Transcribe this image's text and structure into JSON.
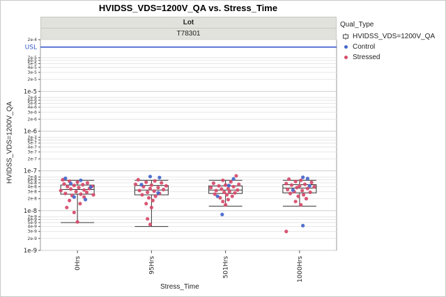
{
  "title": "HVIDSS_VDS=1200V_QA vs. Stress_Time",
  "panel": {
    "group_label": "Lot",
    "group_value": "T78301"
  },
  "chart_data": {
    "type": "box+scatter",
    "y_scale": "log",
    "xlabel": "Stress_Time",
    "ylabel": "HVIDSS_VDS=1200V_QA",
    "ylim": [
      1e-09,
      0.0002
    ],
    "y_ticks": [
      {
        "value": 0.0002,
        "label": "2e-4",
        "major": false
      },
      {
        "value": 7e-05,
        "label": "7e-5",
        "major": false
      },
      {
        "value": 6e-05,
        "label": "6e-5",
        "major": false
      },
      {
        "value": 5e-05,
        "label": "5e-5",
        "major": false
      },
      {
        "value": 4e-05,
        "label": "4e-5",
        "major": false
      },
      {
        "value": 3e-05,
        "label": "3e-5",
        "major": false
      },
      {
        "value": 2e-05,
        "label": "2e-5",
        "major": false
      },
      {
        "value": 1e-05,
        "label": "1e-5",
        "major": true
      },
      {
        "value": 7e-06,
        "label": "7e-6",
        "major": false
      },
      {
        "value": 6e-06,
        "label": "6e-6",
        "major": false
      },
      {
        "value": 5e-06,
        "label": "5e-6",
        "major": false
      },
      {
        "value": 4e-06,
        "label": "4e-6",
        "major": false
      },
      {
        "value": 3e-06,
        "label": "3e-6",
        "major": false
      },
      {
        "value": 2e-06,
        "label": "2e-6",
        "major": false
      },
      {
        "value": 1e-06,
        "label": "1e-6",
        "major": true
      },
      {
        "value": 7e-07,
        "label": "7e-7",
        "major": false
      },
      {
        "value": 6e-07,
        "label": "6e-7",
        "major": false
      },
      {
        "value": 5e-07,
        "label": "5e-7",
        "major": false
      },
      {
        "value": 4e-07,
        "label": "4e-7",
        "major": false
      },
      {
        "value": 3e-07,
        "label": "3e-7",
        "major": false
      },
      {
        "value": 2e-07,
        "label": "2e-7",
        "major": false
      },
      {
        "value": 1e-07,
        "label": "1e-7",
        "major": true
      },
      {
        "value": 7e-08,
        "label": "7e-8",
        "major": false
      },
      {
        "value": 6e-08,
        "label": "6e-8",
        "major": false
      },
      {
        "value": 5e-08,
        "label": "5e-8",
        "major": false
      },
      {
        "value": 4e-08,
        "label": "4e-8",
        "major": false
      },
      {
        "value": 3e-08,
        "label": "3e-8",
        "major": false
      },
      {
        "value": 2e-08,
        "label": "2e-8",
        "major": false
      },
      {
        "value": 1e-08,
        "label": "1e-8",
        "major": true
      },
      {
        "value": 7e-09,
        "label": "7e-9",
        "major": false
      },
      {
        "value": 6e-09,
        "label": "6e-9",
        "major": false
      },
      {
        "value": 5e-09,
        "label": "5e-9",
        "major": false
      },
      {
        "value": 4e-09,
        "label": "4e-9",
        "major": false
      },
      {
        "value": 3e-09,
        "label": "3e-9",
        "major": false
      },
      {
        "value": 2e-09,
        "label": "2e-9",
        "major": false
      },
      {
        "value": 1e-09,
        "label": "1e-9",
        "major": true
      }
    ],
    "reference_line": {
      "label": "USL",
      "value": 0.00013,
      "color": "#3355cc"
    },
    "categories": [
      "0Hrs",
      "95Hrs",
      "501Hrs",
      "1000Hrs"
    ],
    "boxes": [
      {
        "category": "0Hrs",
        "whisker_low": 5e-09,
        "q1": 2.6e-08,
        "median": 3.4e-08,
        "q3": 4.4e-08,
        "whisker_high": 5.8e-08
      },
      {
        "category": "95Hrs",
        "whisker_low": 4e-09,
        "q1": 2.5e-08,
        "median": 3.3e-08,
        "q3": 4.3e-08,
        "whisker_high": 5.8e-08
      },
      {
        "category": "501Hrs",
        "whisker_low": 1.3e-08,
        "q1": 2.7e-08,
        "median": 3.3e-08,
        "q3": 4.2e-08,
        "whisker_high": 5.8e-08
      },
      {
        "category": "1000Hrs",
        "whisker_low": 1.3e-08,
        "q1": 2.8e-08,
        "median": 3.7e-08,
        "q3": 4.5e-08,
        "whisker_high": 5.8e-08
      }
    ],
    "series": [
      {
        "name": "Control",
        "color": "#4466cc",
        "points": [
          {
            "category": "0Hrs",
            "offset": -0.18,
            "value": 6.5e-08
          },
          {
            "category": "0Hrs",
            "offset": 0.05,
            "value": 5.8e-08
          },
          {
            "category": "0Hrs",
            "offset": -0.05,
            "value": 2.2e-08
          },
          {
            "category": "0Hrs",
            "offset": 0.12,
            "value": 1.9e-08
          },
          {
            "category": "0Hrs",
            "offset": -0.1,
            "value": 4.8e-08
          },
          {
            "category": "0Hrs",
            "offset": 0.2,
            "value": 3.9e-08
          },
          {
            "category": "95Hrs",
            "offset": -0.02,
            "value": 7.2e-08
          },
          {
            "category": "95Hrs",
            "offset": 0.12,
            "value": 6.8e-08
          },
          {
            "category": "95Hrs",
            "offset": -0.15,
            "value": 4.5e-08
          },
          {
            "category": "95Hrs",
            "offset": 0.1,
            "value": 2.8e-08
          },
          {
            "category": "501Hrs",
            "offset": 0.12,
            "value": 6.3e-08
          },
          {
            "category": "501Hrs",
            "offset": -0.12,
            "value": 2.3e-08
          },
          {
            "category": "501Hrs",
            "offset": 0.05,
            "value": 4.3e-08
          },
          {
            "category": "501Hrs",
            "offset": -0.05,
            "value": 8e-09
          },
          {
            "category": "1000Hrs",
            "offset": 0.05,
            "value": 6.9e-08
          },
          {
            "category": "1000Hrs",
            "offset": 0.12,
            "value": 6.4e-08
          },
          {
            "category": "1000Hrs",
            "offset": 0.15,
            "value": 4.2e-08
          },
          {
            "category": "1000Hrs",
            "offset": -0.1,
            "value": 3.3e-08
          },
          {
            "category": "1000Hrs",
            "offset": 0.05,
            "value": 4.2e-09
          }
        ]
      },
      {
        "name": "Stressed",
        "color": "#d64a6a",
        "points": [
          {
            "category": "0Hrs",
            "offset": -0.22,
            "value": 6e-08
          },
          {
            "category": "0Hrs",
            "offset": -0.12,
            "value": 5.5e-08
          },
          {
            "category": "0Hrs",
            "offset": 0.0,
            "value": 5.2e-08
          },
          {
            "category": "0Hrs",
            "offset": 0.15,
            "value": 5e-08
          },
          {
            "category": "0Hrs",
            "offset": -0.2,
            "value": 4.7e-08
          },
          {
            "category": "0Hrs",
            "offset": 0.08,
            "value": 4.5e-08
          },
          {
            "category": "0Hrs",
            "offset": -0.05,
            "value": 4.3e-08
          },
          {
            "category": "0Hrs",
            "offset": 0.22,
            "value": 4.1e-08
          },
          {
            "category": "0Hrs",
            "offset": -0.15,
            "value": 4e-08
          },
          {
            "category": "0Hrs",
            "offset": 0.02,
            "value": 3.8e-08
          },
          {
            "category": "0Hrs",
            "offset": 0.18,
            "value": 3.6e-08
          },
          {
            "category": "0Hrs",
            "offset": -0.1,
            "value": 3.5e-08
          },
          {
            "category": "0Hrs",
            "offset": 0.1,
            "value": 3.3e-08
          },
          {
            "category": "0Hrs",
            "offset": -0.25,
            "value": 3.2e-08
          },
          {
            "category": "0Hrs",
            "offset": -0.02,
            "value": 3e-08
          },
          {
            "category": "0Hrs",
            "offset": 0.14,
            "value": 2.9e-08
          },
          {
            "category": "0Hrs",
            "offset": -0.18,
            "value": 2.7e-08
          },
          {
            "category": "0Hrs",
            "offset": 0.05,
            "value": 2.6e-08
          },
          {
            "category": "0Hrs",
            "offset": 0.24,
            "value": 2.5e-08
          },
          {
            "category": "0Hrs",
            "offset": -0.08,
            "value": 2.4e-08
          },
          {
            "category": "0Hrs",
            "offset": 0.1,
            "value": 2.2e-08
          },
          {
            "category": "0Hrs",
            "offset": -0.12,
            "value": 1.8e-08
          },
          {
            "category": "0Hrs",
            "offset": 0.04,
            "value": 1.5e-08
          },
          {
            "category": "0Hrs",
            "offset": -0.16,
            "value": 1.2e-08
          },
          {
            "category": "0Hrs",
            "offset": -0.05,
            "value": 9e-09
          },
          {
            "category": "0Hrs",
            "offset": 0.0,
            "value": 5.2e-09
          },
          {
            "category": "95Hrs",
            "offset": -0.2,
            "value": 6e-08
          },
          {
            "category": "95Hrs",
            "offset": 0.05,
            "value": 5.6e-08
          },
          {
            "category": "95Hrs",
            "offset": -0.08,
            "value": 5.2e-08
          },
          {
            "category": "95Hrs",
            "offset": 0.15,
            "value": 5e-08
          },
          {
            "category": "95Hrs",
            "offset": -0.24,
            "value": 4.6e-08
          },
          {
            "category": "95Hrs",
            "offset": 0.0,
            "value": 4.4e-08
          },
          {
            "category": "95Hrs",
            "offset": 0.22,
            "value": 4.2e-08
          },
          {
            "category": "95Hrs",
            "offset": -0.12,
            "value": 4e-08
          },
          {
            "category": "95Hrs",
            "offset": 0.1,
            "value": 3.8e-08
          },
          {
            "category": "95Hrs",
            "offset": -0.02,
            "value": 3.6e-08
          },
          {
            "category": "95Hrs",
            "offset": 0.18,
            "value": 3.4e-08
          },
          {
            "category": "95Hrs",
            "offset": -0.18,
            "value": 3.2e-08
          },
          {
            "category": "95Hrs",
            "offset": 0.04,
            "value": 3.1e-08
          },
          {
            "category": "95Hrs",
            "offset": -0.06,
            "value": 2.9e-08
          },
          {
            "category": "95Hrs",
            "offset": 0.12,
            "value": 2.7e-08
          },
          {
            "category": "95Hrs",
            "offset": -0.14,
            "value": 2.5e-08
          },
          {
            "category": "95Hrs",
            "offset": 0.06,
            "value": 2.3e-08
          },
          {
            "category": "95Hrs",
            "offset": -0.04,
            "value": 2.1e-08
          },
          {
            "category": "95Hrs",
            "offset": 0.02,
            "value": 1.8e-08
          },
          {
            "category": "95Hrs",
            "offset": -0.08,
            "value": 1.5e-08
          },
          {
            "category": "95Hrs",
            "offset": 0.0,
            "value": 1.2e-08
          },
          {
            "category": "95Hrs",
            "offset": -0.06,
            "value": 6.2e-09
          },
          {
            "category": "95Hrs",
            "offset": -0.02,
            "value": 4.5e-09
          },
          {
            "category": "501Hrs",
            "offset": 0.16,
            "value": 7.5e-08
          },
          {
            "category": "501Hrs",
            "offset": -0.04,
            "value": 5.8e-08
          },
          {
            "category": "501Hrs",
            "offset": 0.08,
            "value": 5.3e-08
          },
          {
            "category": "501Hrs",
            "offset": -0.18,
            "value": 4.9e-08
          },
          {
            "category": "501Hrs",
            "offset": 0.2,
            "value": 4.6e-08
          },
          {
            "category": "501Hrs",
            "offset": 0.0,
            "value": 4.4e-08
          },
          {
            "category": "501Hrs",
            "offset": -0.1,
            "value": 4.2e-08
          },
          {
            "category": "501Hrs",
            "offset": 0.12,
            "value": 4e-08
          },
          {
            "category": "501Hrs",
            "offset": -0.22,
            "value": 3.8e-08
          },
          {
            "category": "501Hrs",
            "offset": 0.04,
            "value": 3.6e-08
          },
          {
            "category": "501Hrs",
            "offset": -0.06,
            "value": 3.5e-08
          },
          {
            "category": "501Hrs",
            "offset": 0.18,
            "value": 3.3e-08
          },
          {
            "category": "501Hrs",
            "offset": -0.14,
            "value": 3.2e-08
          },
          {
            "category": "501Hrs",
            "offset": 0.06,
            "value": 3e-08
          },
          {
            "category": "501Hrs",
            "offset": -0.02,
            "value": 2.9e-08
          },
          {
            "category": "501Hrs",
            "offset": 0.14,
            "value": 2.8e-08
          },
          {
            "category": "501Hrs",
            "offset": -0.16,
            "value": 2.6e-08
          },
          {
            "category": "501Hrs",
            "offset": 0.02,
            "value": 2.5e-08
          },
          {
            "category": "501Hrs",
            "offset": 0.1,
            "value": 2.3e-08
          },
          {
            "category": "501Hrs",
            "offset": -0.08,
            "value": 2.1e-08
          },
          {
            "category": "501Hrs",
            "offset": 0.04,
            "value": 1.9e-08
          },
          {
            "category": "501Hrs",
            "offset": -0.04,
            "value": 1.7e-08
          },
          {
            "category": "501Hrs",
            "offset": 0.0,
            "value": 1.4e-08
          },
          {
            "category": "1000Hrs",
            "offset": -0.16,
            "value": 6.2e-08
          },
          {
            "category": "1000Hrs",
            "offset": 0.02,
            "value": 5.8e-08
          },
          {
            "category": "1000Hrs",
            "offset": -0.06,
            "value": 5.4e-08
          },
          {
            "category": "1000Hrs",
            "offset": 0.18,
            "value": 5.1e-08
          },
          {
            "category": "1000Hrs",
            "offset": -0.2,
            "value": 4.8e-08
          },
          {
            "category": "1000Hrs",
            "offset": 0.08,
            "value": 4.6e-08
          },
          {
            "category": "1000Hrs",
            "offset": -0.12,
            "value": 4.4e-08
          },
          {
            "category": "1000Hrs",
            "offset": 0.0,
            "value": 4.2e-08
          },
          {
            "category": "1000Hrs",
            "offset": 0.22,
            "value": 4e-08
          },
          {
            "category": "1000Hrs",
            "offset": -0.04,
            "value": 3.8e-08
          },
          {
            "category": "1000Hrs",
            "offset": 0.12,
            "value": 3.6e-08
          },
          {
            "category": "1000Hrs",
            "offset": -0.18,
            "value": 3.4e-08
          },
          {
            "category": "1000Hrs",
            "offset": 0.04,
            "value": 3.2e-08
          },
          {
            "category": "1000Hrs",
            "offset": -0.08,
            "value": 3e-08
          },
          {
            "category": "1000Hrs",
            "offset": 0.16,
            "value": 2.9e-08
          },
          {
            "category": "1000Hrs",
            "offset": -0.14,
            "value": 2.7e-08
          },
          {
            "category": "1000Hrs",
            "offset": 0.06,
            "value": 2.5e-08
          },
          {
            "category": "1000Hrs",
            "offset": -0.02,
            "value": 2.3e-08
          },
          {
            "category": "1000Hrs",
            "offset": 0.1,
            "value": 2e-08
          },
          {
            "category": "1000Hrs",
            "offset": -0.06,
            "value": 1.7e-08
          },
          {
            "category": "1000Hrs",
            "offset": 0.02,
            "value": 1.4e-08
          },
          {
            "category": "1000Hrs",
            "offset": -0.2,
            "value": 3e-09
          }
        ]
      }
    ],
    "legend": {
      "title": "Qual_Type",
      "position": "right",
      "items": [
        {
          "label": "HVIDSS_VDS=1200V_QA",
          "kind": "box"
        },
        {
          "label": "Control",
          "kind": "dot",
          "color": "#4466cc"
        },
        {
          "label": "Stressed",
          "kind": "dot",
          "color": "#d64a6a"
        }
      ]
    }
  }
}
